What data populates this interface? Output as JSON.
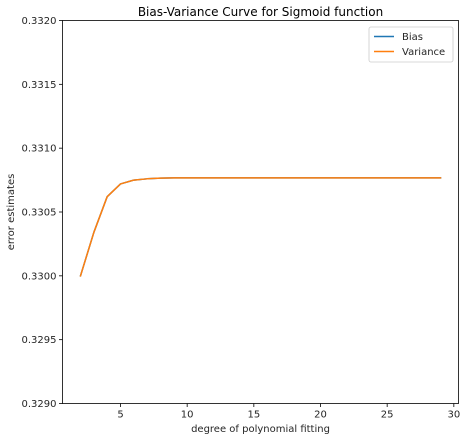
{
  "chart_data": {
    "type": "line",
    "title": "Bias-Variance Curve for Sigmoid function",
    "xlabel": "degree of polynomial fitting",
    "ylabel": "error estimates",
    "xlim": [
      0.65,
      30.35
    ],
    "ylim": [
      0.329,
      0.332
    ],
    "xticks": [
      5,
      10,
      15,
      20,
      25,
      30
    ],
    "xtick_labels": [
      "5",
      "10",
      "15",
      "20",
      "25",
      "30"
    ],
    "yticks": [
      0.329,
      0.3295,
      0.33,
      0.3305,
      0.331,
      0.3315,
      0.332
    ],
    "ytick_labels": [
      "0.3290",
      "0.3295",
      "0.3300",
      "0.3305",
      "0.3310",
      "0.3315",
      "0.3320"
    ],
    "grid": false,
    "legend_position": "upper right",
    "x": [
      2,
      3,
      4,
      5,
      6,
      7,
      8,
      9,
      10,
      11,
      12,
      13,
      14,
      15,
      16,
      17,
      18,
      19,
      20,
      21,
      22,
      23,
      24,
      25,
      26,
      27,
      28,
      29
    ],
    "series": [
      {
        "name": "Bias",
        "color": "#1f77b4",
        "values": [
          0.33,
          0.33034,
          0.33062,
          0.33072,
          0.33075,
          0.33076,
          0.330765,
          0.330767,
          0.330767,
          0.330767,
          0.330767,
          0.330767,
          0.330767,
          0.330767,
          0.330767,
          0.330767,
          0.330767,
          0.330767,
          0.330767,
          0.330767,
          0.330767,
          0.330767,
          0.330767,
          0.330767,
          0.330767,
          0.330767,
          0.330767,
          0.330767
        ]
      },
      {
        "name": "Variance",
        "color": "#ff7f0e",
        "values": [
          0.33,
          0.33034,
          0.33062,
          0.33072,
          0.33075,
          0.33076,
          0.330765,
          0.330767,
          0.330767,
          0.330767,
          0.330767,
          0.330767,
          0.330767,
          0.330767,
          0.330767,
          0.330767,
          0.330767,
          0.330767,
          0.330767,
          0.330767,
          0.330767,
          0.330767,
          0.330767,
          0.330767,
          0.330767,
          0.330767,
          0.330767,
          0.330767
        ]
      }
    ]
  }
}
